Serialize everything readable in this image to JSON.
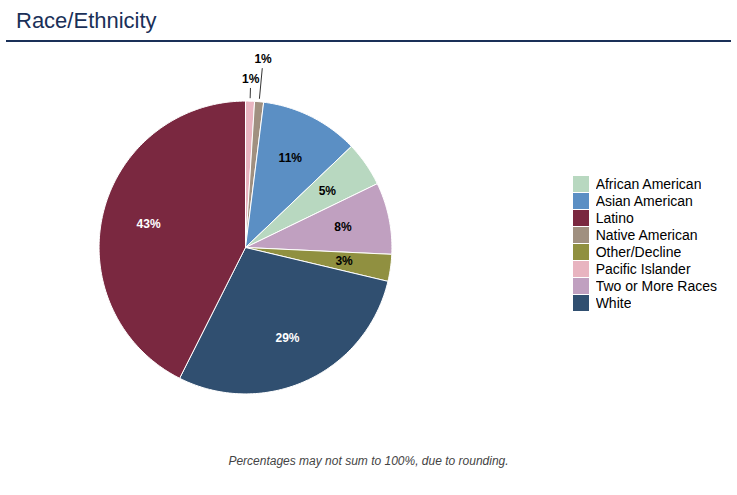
{
  "chart_data": {
    "type": "pie",
    "title": "Race/Ethnicity",
    "caption": "Percentages may not sum to 100%, due to rounding.",
    "categories": [
      "Pacific Islander",
      "Native American",
      "Asian American",
      "African American",
      "Two or More Races",
      "Other/Decline",
      "White",
      "Latino"
    ],
    "values": [
      1,
      1,
      11,
      5,
      8,
      3,
      29,
      43
    ],
    "value_labels": [
      "1%",
      "1%",
      "11%",
      "5%",
      "8%",
      "3%",
      "29%",
      "43%"
    ],
    "colors": [
      "#e8b4c0",
      "#a09080",
      "#5b8fc4",
      "#b8d8c0",
      "#c0a0c0",
      "#909040",
      "#304f70",
      "#7a2840"
    ],
    "data_labels": true,
    "legend": "right"
  }
}
